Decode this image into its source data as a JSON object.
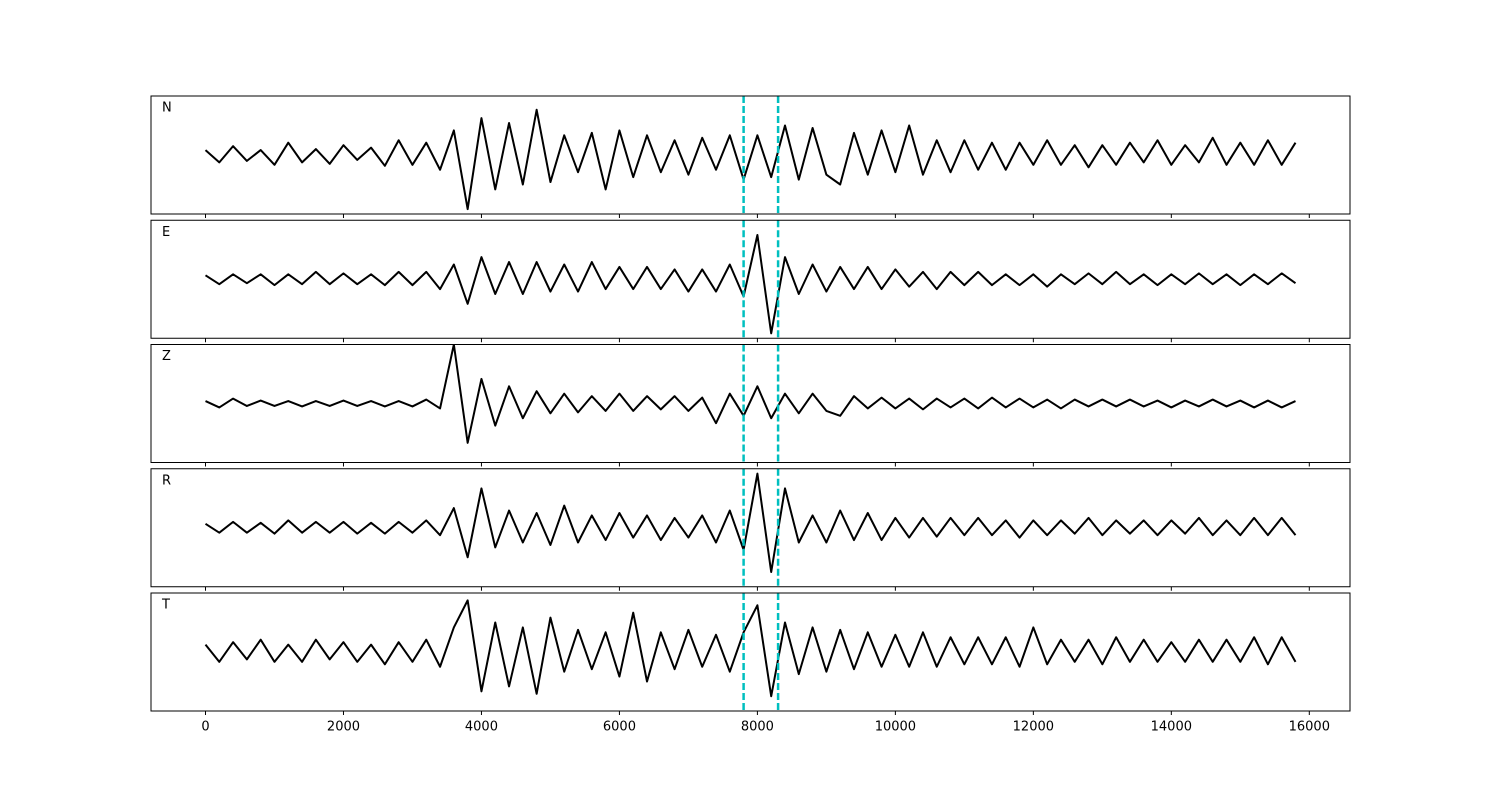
{
  "chart_data": [
    {
      "type": "line",
      "label": "N",
      "color": "#000000",
      "xlim": [
        -790,
        16590
      ],
      "ylim": [
        -1.2,
        1.2
      ],
      "xticks": [
        0,
        2000,
        4000,
        6000,
        8000,
        10000,
        12000,
        14000,
        16000
      ],
      "xticklabels": false,
      "vlines": [
        7800,
        8300
      ],
      "vline_color": "#00bfbf",
      "vline_style": "dashed",
      "x": [
        0,
        200,
        400,
        600,
        800,
        1000,
        1200,
        1400,
        1600,
        1800,
        2000,
        2200,
        2400,
        2600,
        2800,
        3000,
        3200,
        3400,
        3600,
        3800,
        4000,
        4200,
        4400,
        4600,
        4800,
        5000,
        5200,
        5400,
        5600,
        5800,
        6000,
        6200,
        6400,
        6600,
        6800,
        7000,
        7200,
        7400,
        7600,
        7800,
        8000,
        8200,
        8400,
        8600,
        8800,
        9000,
        9200,
        9400,
        9600,
        9800,
        10000,
        10200,
        10400,
        10600,
        10800,
        11000,
        11200,
        11400,
        11600,
        11800,
        12000,
        12200,
        12400,
        12600,
        12800,
        13000,
        13200,
        13400,
        13600,
        13800,
        14000,
        14200,
        14400,
        14600,
        14800,
        15000,
        15200,
        15400,
        15600,
        15800
      ],
      "values": [
        0.1,
        -0.15,
        0.18,
        -0.12,
        0.1,
        -0.2,
        0.25,
        -0.15,
        0.12,
        -0.18,
        0.2,
        -0.1,
        0.15,
        -0.22,
        0.3,
        -0.2,
        0.25,
        -0.3,
        0.5,
        -1.1,
        0.75,
        -0.7,
        0.65,
        -0.6,
        0.92,
        -0.55,
        0.4,
        -0.35,
        0.45,
        -0.7,
        0.5,
        -0.45,
        0.4,
        -0.35,
        0.3,
        -0.4,
        0.35,
        -0.3,
        0.4,
        -0.5,
        0.4,
        -0.45,
        0.6,
        -0.5,
        0.55,
        -0.4,
        -0.6,
        0.45,
        -0.4,
        0.5,
        -0.35,
        0.6,
        -0.4,
        0.3,
        -0.35,
        0.3,
        -0.3,
        0.25,
        -0.3,
        0.25,
        -0.2,
        0.3,
        -0.2,
        0.2,
        -0.25,
        0.2,
        -0.2,
        0.25,
        -0.15,
        0.3,
        -0.2,
        0.2,
        -0.15,
        0.35,
        -0.2,
        0.25,
        -0.2,
        0.3,
        -0.2,
        0.25
      ]
    },
    {
      "type": "line",
      "label": "E",
      "color": "#000000",
      "xlim": [
        -790,
        16590
      ],
      "ylim": [
        -1.2,
        1.2
      ],
      "xticks": [
        0,
        2000,
        4000,
        6000,
        8000,
        10000,
        12000,
        14000,
        16000
      ],
      "xticklabels": false,
      "vlines": [
        7800,
        8300
      ],
      "vline_color": "#00bfbf",
      "vline_style": "dashed",
      "x": [
        0,
        200,
        400,
        600,
        800,
        1000,
        1200,
        1400,
        1600,
        1800,
        2000,
        2200,
        2400,
        2600,
        2800,
        3000,
        3200,
        3400,
        3600,
        3800,
        4000,
        4200,
        4400,
        4600,
        4800,
        5000,
        5200,
        5400,
        5600,
        5800,
        6000,
        6200,
        6400,
        6600,
        6800,
        7000,
        7200,
        7400,
        7600,
        7800,
        8000,
        8200,
        8400,
        8600,
        8800,
        9000,
        9200,
        9400,
        9600,
        9800,
        10000,
        10200,
        10400,
        10600,
        10800,
        11000,
        11200,
        11400,
        11600,
        11800,
        12000,
        12200,
        12400,
        12600,
        12800,
        13000,
        13200,
        13400,
        13600,
        13800,
        14000,
        14200,
        14400,
        14600,
        14800,
        15000,
        15200,
        15400,
        15600,
        15800
      ],
      "values": [
        0.08,
        -0.1,
        0.1,
        -0.08,
        0.1,
        -0.12,
        0.1,
        -0.1,
        0.15,
        -0.1,
        0.12,
        -0.1,
        0.1,
        -0.12,
        0.15,
        -0.12,
        0.15,
        -0.2,
        0.3,
        -0.5,
        0.45,
        -0.3,
        0.35,
        -0.3,
        0.35,
        -0.25,
        0.3,
        -0.25,
        0.35,
        -0.2,
        0.25,
        -0.2,
        0.25,
        -0.2,
        0.2,
        -0.25,
        0.2,
        -0.25,
        0.3,
        -0.35,
        0.9,
        -1.1,
        0.45,
        -0.3,
        0.3,
        -0.25,
        0.25,
        -0.2,
        0.25,
        -0.2,
        0.2,
        -0.15,
        0.15,
        -0.2,
        0.15,
        -0.12,
        0.15,
        -0.12,
        0.1,
        -0.12,
        0.1,
        -0.15,
        0.1,
        -0.1,
        0.12,
        -0.1,
        0.15,
        -0.1,
        0.1,
        -0.12,
        0.1,
        -0.1,
        0.12,
        -0.1,
        0.1,
        -0.12,
        0.1,
        -0.1,
        0.12,
        -0.08
      ]
    },
    {
      "type": "line",
      "label": "Z",
      "color": "#000000",
      "xlim": [
        -790,
        16590
      ],
      "ylim": [
        -1.2,
        1.2
      ],
      "xticks": [
        0,
        2000,
        4000,
        6000,
        8000,
        10000,
        12000,
        14000,
        16000
      ],
      "xticklabels": false,
      "vlines": [
        7800,
        8300
      ],
      "vline_color": "#00bfbf",
      "vline_style": "dashed",
      "x": [
        0,
        200,
        400,
        600,
        800,
        1000,
        1200,
        1400,
        1600,
        1800,
        2000,
        2200,
        2400,
        2600,
        2800,
        3000,
        3200,
        3400,
        3600,
        3800,
        4000,
        4200,
        4400,
        4600,
        4800,
        5000,
        5200,
        5400,
        5600,
        5800,
        6000,
        6200,
        6400,
        6600,
        6800,
        7000,
        7200,
        7400,
        7600,
        7800,
        8000,
        8200,
        8400,
        8600,
        8800,
        9000,
        9200,
        9400,
        9600,
        9800,
        10000,
        10200,
        10400,
        10600,
        10800,
        11000,
        11200,
        11400,
        11600,
        11800,
        12000,
        12200,
        12400,
        12600,
        12800,
        13000,
        13200,
        13400,
        13600,
        13800,
        14000,
        14200,
        14400,
        14600,
        14800,
        15000,
        15200,
        15400,
        15600,
        15800
      ],
      "values": [
        0.05,
        -0.08,
        0.1,
        -0.05,
        0.06,
        -0.05,
        0.05,
        -0.06,
        0.05,
        -0.05,
        0.06,
        -0.05,
        0.05,
        -0.06,
        0.05,
        -0.06,
        0.08,
        -0.1,
        1.2,
        -0.8,
        0.5,
        -0.45,
        0.35,
        -0.3,
        0.25,
        -0.2,
        0.2,
        -0.18,
        0.15,
        -0.15,
        0.2,
        -0.15,
        0.15,
        -0.12,
        0.15,
        -0.15,
        0.12,
        -0.4,
        0.2,
        -0.25,
        0.35,
        -0.3,
        0.2,
        -0.2,
        0.2,
        -0.15,
        -0.25,
        0.15,
        -0.1,
        0.12,
        -0.1,
        0.1,
        -0.12,
        0.1,
        -0.08,
        0.1,
        -0.1,
        0.12,
        -0.08,
        0.1,
        -0.08,
        0.08,
        -0.1,
        0.08,
        -0.06,
        0.08,
        -0.06,
        0.08,
        -0.06,
        0.06,
        -0.08,
        0.06,
        -0.06,
        0.08,
        -0.06,
        0.06,
        -0.08,
        0.06,
        -0.08,
        0.05
      ]
    },
    {
      "type": "line",
      "label": "R",
      "color": "#000000",
      "xlim": [
        -790,
        16590
      ],
      "ylim": [
        -1.2,
        1.2
      ],
      "xticks": [
        0,
        2000,
        4000,
        6000,
        8000,
        10000,
        12000,
        14000,
        16000
      ],
      "xticklabels": false,
      "vlines": [
        7800,
        8300
      ],
      "vline_color": "#00bfbf",
      "vline_style": "dashed",
      "x": [
        0,
        200,
        400,
        600,
        800,
        1000,
        1200,
        1400,
        1600,
        1800,
        2000,
        2200,
        2400,
        2600,
        2800,
        3000,
        3200,
        3400,
        3600,
        3800,
        4000,
        4200,
        4400,
        4600,
        4800,
        5000,
        5200,
        5400,
        5600,
        5800,
        6000,
        6200,
        6400,
        6600,
        6800,
        7000,
        7200,
        7400,
        7600,
        7800,
        8000,
        8200,
        8400,
        8600,
        8800,
        9000,
        9200,
        9400,
        9600,
        9800,
        10000,
        10200,
        10400,
        10600,
        10800,
        11000,
        11200,
        11400,
        11600,
        11800,
        12000,
        12200,
        12400,
        12600,
        12800,
        13000,
        13200,
        13400,
        13600,
        13800,
        14000,
        14200,
        14400,
        14600,
        14800,
        15000,
        15200,
        15400,
        15600,
        15800
      ],
      "values": [
        0.08,
        -0.1,
        0.12,
        -0.1,
        0.1,
        -0.12,
        0.15,
        -0.1,
        0.12,
        -0.1,
        0.12,
        -0.12,
        0.1,
        -0.12,
        0.12,
        -0.1,
        0.15,
        -0.15,
        0.4,
        -0.6,
        0.8,
        -0.4,
        0.35,
        -0.3,
        0.3,
        -0.35,
        0.45,
        -0.3,
        0.25,
        -0.25,
        0.3,
        -0.2,
        0.25,
        -0.25,
        0.2,
        -0.2,
        0.25,
        -0.3,
        0.35,
        -0.45,
        1.1,
        -0.9,
        0.8,
        -0.3,
        0.25,
        -0.3,
        0.35,
        -0.25,
        0.3,
        -0.25,
        0.2,
        -0.2,
        0.2,
        -0.18,
        0.2,
        -0.15,
        0.2,
        -0.15,
        0.15,
        -0.2,
        0.15,
        -0.15,
        0.15,
        -0.12,
        0.2,
        -0.15,
        0.15,
        -0.12,
        0.15,
        -0.15,
        0.15,
        -0.12,
        0.2,
        -0.15,
        0.15,
        -0.15,
        0.2,
        -0.15,
        0.2,
        -0.15
      ]
    },
    {
      "type": "line",
      "label": "T",
      "color": "#000000",
      "xlim": [
        -790,
        16590
      ],
      "ylim": [
        -1.2,
        1.2
      ],
      "xticks": [
        0,
        2000,
        4000,
        6000,
        8000,
        10000,
        12000,
        14000,
        16000
      ],
      "xticklabels": true,
      "vlines": [
        7800,
        8300
      ],
      "vline_color": "#00bfbf",
      "vline_style": "dashed",
      "x": [
        0,
        200,
        400,
        600,
        800,
        1000,
        1200,
        1400,
        1600,
        1800,
        2000,
        2200,
        2400,
        2600,
        2800,
        3000,
        3200,
        3400,
        3600,
        3800,
        4000,
        4200,
        4400,
        4600,
        4800,
        5000,
        5200,
        5400,
        5600,
        5800,
        6000,
        6200,
        6400,
        6600,
        6800,
        7000,
        7200,
        7400,
        7600,
        7800,
        8000,
        8200,
        8400,
        8600,
        8800,
        9000,
        9200,
        9400,
        9600,
        9800,
        10000,
        10200,
        10400,
        10600,
        10800,
        11000,
        11200,
        11400,
        11600,
        11800,
        12000,
        12200,
        12400,
        12600,
        12800,
        13000,
        13200,
        13400,
        13600,
        13800,
        14000,
        14200,
        14400,
        14600,
        14800,
        15000,
        15200,
        15400,
        15600,
        15800
      ],
      "values": [
        0.15,
        -0.2,
        0.2,
        -0.15,
        0.25,
        -0.2,
        0.15,
        -0.2,
        0.25,
        -0.15,
        0.2,
        -0.2,
        0.15,
        -0.25,
        0.2,
        -0.2,
        0.25,
        -0.3,
        0.5,
        1.05,
        -0.8,
        0.6,
        -0.7,
        0.5,
        -0.85,
        0.7,
        -0.4,
        0.45,
        -0.35,
        0.4,
        -0.5,
        0.8,
        -0.6,
        0.4,
        -0.35,
        0.45,
        -0.3,
        0.35,
        -0.4,
        0.4,
        0.95,
        -0.9,
        0.6,
        -0.45,
        0.5,
        -0.4,
        0.45,
        -0.35,
        0.4,
        -0.3,
        0.35,
        -0.3,
        0.4,
        -0.3,
        0.3,
        -0.25,
        0.3,
        -0.25,
        0.3,
        -0.3,
        0.5,
        -0.25,
        0.25,
        -0.2,
        0.25,
        -0.25,
        0.3,
        -0.2,
        0.25,
        -0.2,
        0.2,
        -0.2,
        0.25,
        -0.2,
        0.25,
        -0.2,
        0.3,
        -0.25,
        0.3,
        -0.2
      ]
    }
  ]
}
